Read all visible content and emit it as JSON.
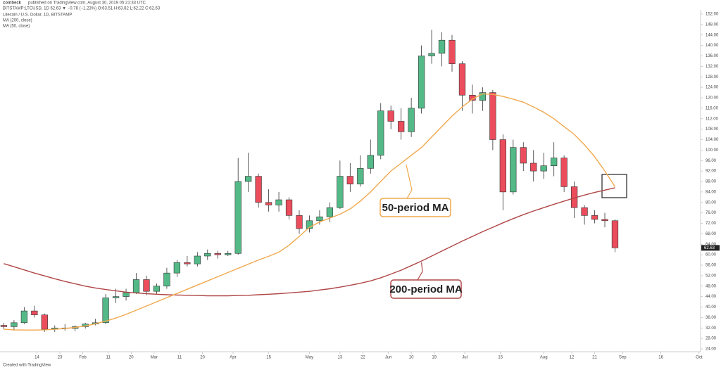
{
  "header": {
    "author": "coinbeck",
    "published": "published on TradingView.com, August 30, 2019 05:21:33 UTC",
    "quote": "BITSTAMP:LTCUSD, 1D 62.63 ▼ −0.78 (−1.23%) O:63.51 H:63.82 L:62.22 C:62.63"
  },
  "footer": "Created with TradingView",
  "chart_data": {
    "type": "candlestick",
    "title": "Litecoin / U.S. Dollar, 1D, BITSTAMP",
    "up_color": "#53b987",
    "down_color": "#eb4d5c",
    "candles": [
      [
        33,
        34,
        31.5,
        32.5
      ],
      [
        32.5,
        35,
        31,
        34
      ],
      [
        34,
        40,
        33.5,
        38.5
      ],
      [
        38.5,
        40.5,
        36,
        37
      ],
      [
        37,
        37.5,
        30.5,
        31.5
      ],
      [
        31.5,
        33,
        30.5,
        32
      ],
      [
        32,
        33.5,
        31,
        31.8
      ],
      [
        31.8,
        33,
        30.8,
        32.5
      ],
      [
        32.5,
        34,
        31.8,
        33.5
      ],
      [
        33.5,
        35.5,
        33,
        34
      ],
      [
        34,
        45,
        33.5,
        43.5
      ],
      [
        43.5,
        47,
        41.5,
        44
      ],
      [
        44,
        47,
        42.5,
        45.5
      ],
      [
        45.5,
        53,
        45,
        50.5
      ],
      [
        50.5,
        52,
        44.5,
        46
      ],
      [
        46,
        49,
        45,
        48
      ],
      [
        48,
        55,
        47,
        53
      ],
      [
        53,
        58,
        51.5,
        57
      ],
      [
        57,
        59.5,
        55.5,
        56.5
      ],
      [
        56.5,
        61,
        55.5,
        59.5
      ],
      [
        59.5,
        62,
        58,
        60.5
      ],
      [
        60.5,
        61.5,
        58.5,
        60
      ],
      [
        60,
        61.5,
        59.5,
        60.5
      ],
      [
        60.5,
        97,
        60,
        88
      ],
      [
        88,
        99,
        84,
        90
      ],
      [
        90,
        91,
        78,
        80
      ],
      [
        80,
        85,
        76.5,
        79
      ],
      [
        79,
        84,
        76.5,
        81
      ],
      [
        81,
        82,
        73.5,
        75
      ],
      [
        75,
        77,
        68,
        70
      ],
      [
        70,
        75,
        68.5,
        73
      ],
      [
        73,
        77,
        71.5,
        74.5
      ],
      [
        74.5,
        80,
        72.5,
        78
      ],
      [
        78,
        96,
        77.5,
        90
      ],
      [
        90,
        95,
        84,
        87
      ],
      [
        87,
        98,
        86,
        93
      ],
      [
        93,
        104,
        91,
        98
      ],
      [
        98,
        118,
        96.5,
        115
      ],
      [
        115,
        117,
        108,
        111
      ],
      [
        111,
        116,
        104,
        107
      ],
      [
        107,
        120,
        105,
        116
      ],
      [
        116,
        140,
        114,
        136
      ],
      [
        136,
        146,
        133,
        137
      ],
      [
        137,
        145,
        132,
        142
      ],
      [
        142,
        144,
        130,
        133
      ],
      [
        133,
        134,
        115,
        121
      ],
      [
        121,
        125,
        114,
        119
      ],
      [
        119,
        124,
        115,
        122
      ],
      [
        122,
        123,
        100,
        104
      ],
      [
        104,
        106,
        77,
        84
      ],
      [
        84,
        104,
        83,
        101
      ],
      [
        101,
        103,
        92,
        95
      ],
      [
        95,
        100,
        88,
        92
      ],
      [
        92,
        99,
        89,
        94
      ],
      [
        94,
        103,
        90,
        97
      ],
      [
        97,
        98,
        84,
        86
      ],
      [
        86,
        88,
        74,
        78
      ],
      [
        78,
        79,
        71.5,
        75
      ],
      [
        75,
        77,
        72,
        73.5
      ],
      [
        73.5,
        76,
        70.5,
        73
      ],
      [
        73,
        73.5,
        61,
        62.63
      ]
    ],
    "series": [
      {
        "name": "MA (200, close)",
        "color": "#b04646",
        "values": [
          56.6,
          55.4,
          54.2,
          53,
          51.9,
          50.8,
          49.8,
          48.9,
          48,
          47.3,
          46.7,
          46.2,
          45.7,
          45.4,
          45.1,
          44.9,
          44.7,
          44.6,
          44.5,
          44.4,
          44.3,
          44.3,
          44.3,
          44.4,
          44.5,
          44.7,
          44.9,
          45.1,
          45.4,
          45.7,
          46,
          46.5,
          47,
          47.6,
          48.3,
          49.1,
          50,
          51.2,
          52.6,
          54.1,
          55.8,
          57.6,
          59.5,
          61.4,
          63.3,
          65.2,
          67,
          68.8,
          70.5,
          72.2,
          73.8,
          75.3,
          76.7,
          78,
          79.3,
          80.5,
          81.7,
          82.8,
          83.8,
          84.7,
          85.6
        ]
      },
      {
        "name": "MA (50, close)",
        "color": "#f0a84d",
        "values": [
          31.5,
          31.3,
          31.2,
          31.2,
          31.3,
          31.5,
          31.8,
          32.2,
          32.8,
          33.6,
          34.6,
          35.8,
          37.2,
          38.8,
          40.4,
          42,
          43.6,
          45.2,
          46.8,
          48.4,
          50,
          51.6,
          53.2,
          54.8,
          56.4,
          58,
          59.4,
          61,
          63.6,
          67,
          70.5,
          72.5,
          74,
          75.5,
          77.5,
          80.5,
          84,
          88,
          92,
          95,
          98,
          101,
          105,
          109,
          113,
          116.5,
          119.5,
          121.5,
          121.3,
          120.5,
          119.5,
          118.3,
          116.5,
          114.5,
          112,
          109,
          106,
          102,
          97.5,
          92,
          86
        ]
      }
    ],
    "annotations": [
      "50-period MA",
      "200-period MA"
    ],
    "xlim": [
      -0.1,
      68.4
    ],
    "xticks": [
      {
        "value": 3.25,
        "label": "14"
      },
      {
        "value": 5.5,
        "label": "23"
      },
      {
        "value": 7.75,
        "label": "Feb"
      },
      {
        "value": 10.25,
        "label": "11"
      },
      {
        "value": 12.5,
        "label": "20"
      },
      {
        "value": 14.75,
        "label": "Mar"
      },
      {
        "value": 17.25,
        "label": "11"
      },
      {
        "value": 19.5,
        "label": "20"
      },
      {
        "value": 22.5,
        "label": "Apr"
      },
      {
        "value": 26,
        "label": "15"
      },
      {
        "value": 30,
        "label": "May"
      },
      {
        "value": 33,
        "label": "13"
      },
      {
        "value": 35.25,
        "label": "22"
      },
      {
        "value": 37.75,
        "label": "Jun"
      },
      {
        "value": 40,
        "label": "10"
      },
      {
        "value": 42.25,
        "label": "19"
      },
      {
        "value": 45.25,
        "label": "Jul"
      },
      {
        "value": 48.75,
        "label": "15"
      },
      {
        "value": 53,
        "label": "Aug"
      },
      {
        "value": 55.75,
        "label": "12"
      },
      {
        "value": 58,
        "label": "21"
      },
      {
        "value": 60.75,
        "label": "Sep"
      },
      {
        "value": 64.5,
        "label": "16"
      },
      {
        "value": 68.25,
        "label": "Oct"
      }
    ],
    "ylim": [
      24,
      152
    ],
    "yticks": [
      {
        "value": 24,
        "label": "24.00"
      },
      {
        "value": 28,
        "label": "28.00"
      },
      {
        "value": 32,
        "label": "32.00"
      },
      {
        "value": 36,
        "label": "36.00"
      },
      {
        "value": 40,
        "label": "40.00"
      },
      {
        "value": 44,
        "label": "44.00"
      },
      {
        "value": 48,
        "label": "48.00"
      },
      {
        "value": 52,
        "label": "52.00"
      },
      {
        "value": 56,
        "label": "56.00"
      },
      {
        "value": 60,
        "label": "60.00"
      },
      {
        "value": 64,
        "label": "64.00"
      },
      {
        "value": 68,
        "label": "68.00"
      },
      {
        "value": 72,
        "label": "72.00"
      },
      {
        "value": 76,
        "label": "76.00"
      },
      {
        "value": 80,
        "label": "80.00"
      },
      {
        "value": 84,
        "label": "84.00"
      },
      {
        "value": 88,
        "label": "88.00"
      },
      {
        "value": 92,
        "label": "92.00"
      },
      {
        "value": 96,
        "label": "96.00"
      },
      {
        "value": 100,
        "label": "100.00"
      },
      {
        "value": 104,
        "label": "104.00"
      },
      {
        "value": 108,
        "label": "108.00"
      },
      {
        "value": 112,
        "label": "112.00"
      },
      {
        "value": 116,
        "label": "116.00"
      },
      {
        "value": 120,
        "label": "120.00"
      },
      {
        "value": 124,
        "label": "124.00"
      },
      {
        "value": 128,
        "label": "128.00"
      },
      {
        "value": 132,
        "label": "132.00"
      },
      {
        "value": 136,
        "label": "136.00"
      },
      {
        "value": 140,
        "label": "140.00"
      },
      {
        "value": 144,
        "label": "144.00"
      },
      {
        "value": 148,
        "label": "148.00"
      },
      {
        "value": 152,
        "label": "152.00"
      }
    ]
  }
}
